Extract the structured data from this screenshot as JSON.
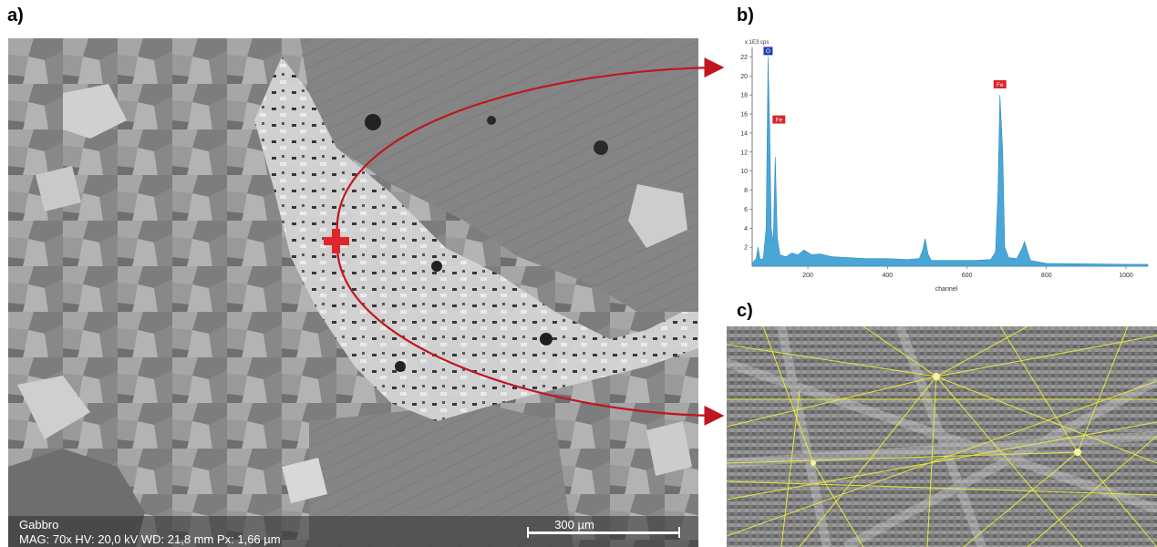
{
  "panels": {
    "a": "a)",
    "b": "b)",
    "c": "c)"
  },
  "sem": {
    "sample": "Gabbro",
    "info": "MAG: 70x   HV: 20,0 kV   WD: 21,8 mm   Px: 1,66 µm",
    "scalebar": "300 µm",
    "marker": "red-cross-marker"
  },
  "colors": {
    "arrow": "#c0161f",
    "marker": "#e0262b",
    "spectrum": "#4aa6d6",
    "kikuchi": "#e8e83a",
    "peak_label": "#d9262b",
    "peak_label_blue": "#1f3fb5"
  },
  "chart_data": {
    "type": "area",
    "title": "",
    "y_unit_label": "x 1E3 cps",
    "xlabel": "channel",
    "ylabel": "",
    "xlim": [
      60,
      1055
    ],
    "ylim": [
      0,
      23
    ],
    "x_ticks": [
      200,
      400,
      600,
      800,
      1000
    ],
    "y_ticks": [
      2,
      4,
      6,
      8,
      10,
      12,
      14,
      16,
      18,
      20,
      22
    ],
    "grid": false,
    "series": [
      {
        "values": [
          [
            60,
            0.3
          ],
          [
            70,
            0.8
          ],
          [
            75,
            2.0
          ],
          [
            80,
            0.7
          ],
          [
            88,
            0.8
          ],
          [
            95,
            4.0
          ],
          [
            100,
            22.0
          ],
          [
            104,
            14.5
          ],
          [
            108,
            4.0
          ],
          [
            113,
            2.5
          ],
          [
            118,
            11.5
          ],
          [
            123,
            3.0
          ],
          [
            130,
            1.2
          ],
          [
            145,
            1.0
          ],
          [
            160,
            1.4
          ],
          [
            175,
            1.2
          ],
          [
            190,
            1.7
          ],
          [
            210,
            1.2
          ],
          [
            230,
            1.3
          ],
          [
            260,
            1.0
          ],
          [
            300,
            0.9
          ],
          [
            350,
            0.8
          ],
          [
            400,
            0.8
          ],
          [
            450,
            0.7
          ],
          [
            480,
            0.8
          ],
          [
            488,
            1.6
          ],
          [
            495,
            2.9
          ],
          [
            502,
            1.3
          ],
          [
            510,
            0.6
          ],
          [
            560,
            0.6
          ],
          [
            620,
            0.6
          ],
          [
            660,
            0.7
          ],
          [
            672,
            1.5
          ],
          [
            678,
            8.0
          ],
          [
            683,
            18.0
          ],
          [
            690,
            12.0
          ],
          [
            695,
            2.0
          ],
          [
            705,
            0.9
          ],
          [
            725,
            0.8
          ],
          [
            738,
            1.8
          ],
          [
            745,
            2.6
          ],
          [
            752,
            1.6
          ],
          [
            760,
            0.6
          ],
          [
            800,
            0.3
          ],
          [
            900,
            0.25
          ],
          [
            1000,
            0.2
          ],
          [
            1055,
            0.2
          ]
        ]
      }
    ],
    "annotations": [
      {
        "text": "O",
        "x": 100,
        "y": 22.0,
        "color": "#1f3fb5"
      },
      {
        "text": "Fe",
        "x": 118,
        "y": 14.8,
        "color": "#d9262b"
      },
      {
        "text": "Fe",
        "x": 683,
        "y": 18.5,
        "color": "#d9262b"
      }
    ]
  }
}
